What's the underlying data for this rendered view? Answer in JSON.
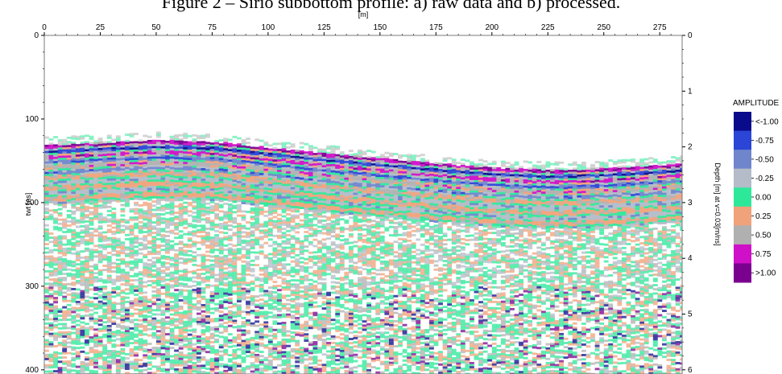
{
  "caption": "Figure 2 – Sirio subbottom profile: a) raw data and b) processed.",
  "chart_data": {
    "type": "heatmap",
    "title": "",
    "xlabel": "[m]",
    "ylabel": "twt [ns]",
    "y2label": "Depth [m] at v=0.03[m/ns]",
    "xlim": [
      0,
      285
    ],
    "ylim": [
      0,
      405
    ],
    "y2lim": [
      0,
      6.075
    ],
    "x_ticks": [
      0,
      25,
      50,
      75,
      100,
      125,
      150,
      175,
      200,
      225,
      250,
      275
    ],
    "y_ticks": [
      0,
      100,
      200,
      300,
      400
    ],
    "y2_ticks": [
      0,
      1,
      2,
      3,
      4,
      5,
      6
    ],
    "seabed_twt_profile": {
      "x": [
        0,
        25,
        50,
        75,
        100,
        125,
        150,
        175,
        200,
        225,
        250,
        275,
        285
      ],
      "twt": [
        130,
        127,
        124,
        126,
        133,
        140,
        146,
        152,
        157,
        160,
        158,
        154,
        152
      ]
    },
    "colorscale": {
      "title": "AMPLITUDE",
      "labels": [
        "<-1.00",
        "-0.75",
        "-0.50",
        "-0.25",
        "0.00",
        "0.25",
        "0.50",
        "0.75",
        ">1.00"
      ],
      "values": [
        -1.0,
        -0.75,
        -0.5,
        -0.25,
        0.0,
        0.25,
        0.5,
        0.75,
        1.0
      ],
      "colors": [
        "#0a0a8c",
        "#2b45d6",
        "#6f86cc",
        "#b3bcc8",
        "#2ee89a",
        "#f0a27a",
        "#b0b0b0",
        "#d010c8",
        "#7a0090"
      ]
    },
    "grid": false,
    "legend_position": "right"
  }
}
